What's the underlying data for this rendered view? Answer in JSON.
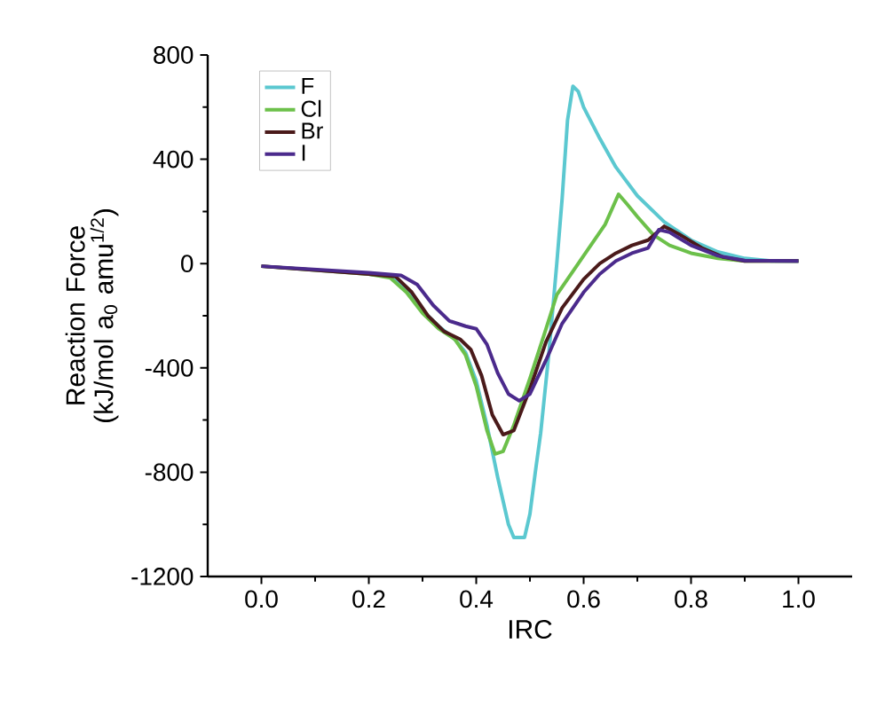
{
  "chart_data": {
    "type": "line",
    "xlabel": "IRC",
    "ylabel": "Reaction Force (kJ/mol a$_{0}$ amu$^{1/2}$)",
    "xlim": [
      -0.1,
      1.1
    ],
    "ylim": [
      -1200,
      800
    ],
    "xticks": [
      {
        "value": 0,
        "label": "0.0"
      },
      {
        "value": 0.2,
        "label": "0.2"
      },
      {
        "value": 0.4,
        "label": "0.4"
      },
      {
        "value": 0.6,
        "label": "0.6"
      },
      {
        "value": 0.8,
        "label": "0.8"
      },
      {
        "value": 1.0,
        "label": "1.0"
      }
    ],
    "yticks": [
      -1200,
      -800,
      -400,
      0,
      400,
      800
    ],
    "legend": "top left",
    "grid": false,
    "marker": "none",
    "line_style": "solid",
    "series": [
      {
        "name": "F",
        "color": "#5bc8d0",
        "x": [
          0.2,
          0.24,
          0.27,
          0.3,
          0.33,
          0.36,
          0.38,
          0.4,
          0.42,
          0.44,
          0.46,
          0.47,
          0.49,
          0.5,
          0.51,
          0.52,
          0.535,
          0.55,
          0.56,
          0.57,
          0.58,
          0.59,
          0.6,
          0.63,
          0.66,
          0.7,
          0.75,
          0.8,
          0.85,
          0.9,
          0.95,
          1.0
        ],
        "values": [
          -40,
          -50,
          -100,
          -180,
          -240,
          -290,
          -340,
          -450,
          -620,
          -820,
          -1000,
          -1050,
          -1050,
          -960,
          -800,
          -650,
          -350,
          0,
          250,
          550,
          680,
          660,
          600,
          480,
          370,
          260,
          160,
          90,
          45,
          20,
          10,
          10
        ]
      },
      {
        "name": "Cl",
        "color": "#6cc04a",
        "x": [
          0,
          0.2,
          0.24,
          0.27,
          0.3,
          0.33,
          0.36,
          0.38,
          0.4,
          0.42,
          0.435,
          0.45,
          0.47,
          0.5,
          0.53,
          0.55,
          0.58,
          0.61,
          0.64,
          0.665,
          0.68,
          0.7,
          0.73,
          0.76,
          0.8,
          0.85,
          0.9,
          1.0
        ],
        "values": [
          -10,
          -40,
          -55,
          -110,
          -190,
          -250,
          -290,
          -350,
          -470,
          -640,
          -730,
          -720,
          -620,
          -440,
          -250,
          -120,
          -30,
          60,
          150,
          266,
          230,
          180,
          110,
          70,
          40,
          20,
          10,
          10
        ]
      },
      {
        "name": "Br",
        "color": "#4a1a1a",
        "x": [
          0,
          0.2,
          0.25,
          0.28,
          0.31,
          0.34,
          0.37,
          0.39,
          0.41,
          0.43,
          0.45,
          0.47,
          0.5,
          0.53,
          0.56,
          0.6,
          0.63,
          0.66,
          0.69,
          0.72,
          0.75,
          0.78,
          0.82,
          0.86,
          0.9,
          1.0
        ],
        "values": [
          -10,
          -40,
          -50,
          -110,
          -200,
          -260,
          -290,
          -330,
          -430,
          -580,
          -656,
          -640,
          -480,
          -300,
          -170,
          -60,
          0,
          40,
          70,
          90,
          143,
          110,
          60,
          25,
          10,
          10
        ]
      },
      {
        "name": "I",
        "color": "#4b2a8c",
        "x": [
          0,
          0.2,
          0.26,
          0.29,
          0.32,
          0.35,
          0.38,
          0.4,
          0.42,
          0.44,
          0.46,
          0.48,
          0.5,
          0.53,
          0.56,
          0.6,
          0.63,
          0.66,
          0.69,
          0.72,
          0.74,
          0.76,
          0.8,
          0.85,
          0.9,
          1.0
        ],
        "values": [
          -10,
          -35,
          -45,
          -80,
          -160,
          -220,
          -240,
          -250,
          -310,
          -420,
          -500,
          -526,
          -500,
          -370,
          -230,
          -110,
          -40,
          10,
          40,
          60,
          130,
          120,
          70,
          30,
          12,
          10
        ]
      }
    ]
  }
}
